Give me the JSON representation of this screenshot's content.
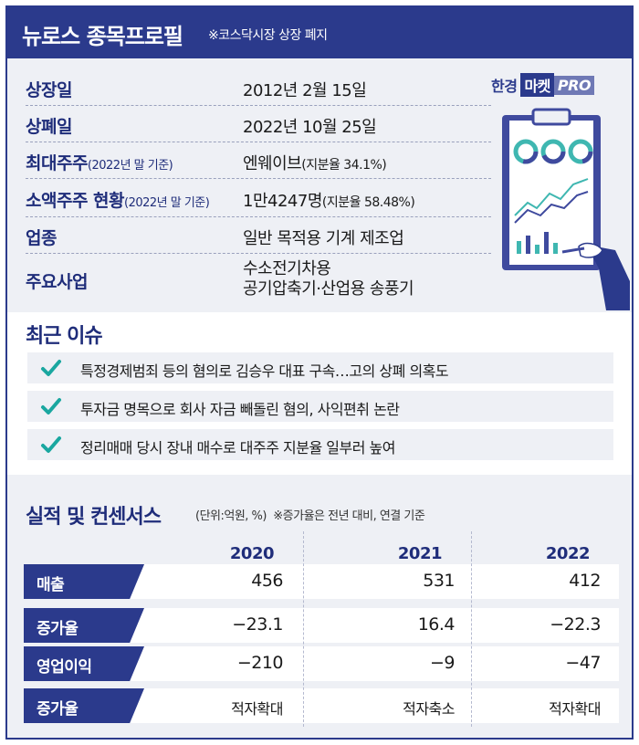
{
  "header": {
    "title": "뉴로스 종목프로필",
    "subtitle": "※코스닥시장 상장 폐지"
  },
  "brand": {
    "part1": "한경",
    "part2": "마켓",
    "part3": "PRO"
  },
  "profile": {
    "listing": {
      "label": "상장일",
      "value": "2012년 2월 15일"
    },
    "delisting": {
      "label": "상폐일",
      "value": "2022년 10월 25일"
    },
    "major": {
      "label": "최대주주",
      "label_note": "(2022년 말 기준)",
      "value": "엔웨이브",
      "value_note": "(지분율 34.1%)"
    },
    "minor": {
      "label": "소액주주 현황",
      "label_note": "(2022년 말 기준)",
      "value": "1만4247명",
      "value_note": "(지분율 58.48%)"
    },
    "industry": {
      "label": "업종",
      "value": "일반 목적용 기계 제조업"
    },
    "business": {
      "label": "주요사업",
      "line1": "수소전기차용",
      "line2": "공기압축기·산업용 송풍기"
    }
  },
  "issues": {
    "title": "최근 이슈",
    "items": [
      "특정경제범죄 등의 혐의로 김승우 대표 구속…고의 상폐 의혹도",
      "투자금 명목으로 회사 자금 빼돌린 혐의, 사익편취 논란",
      "정리매매 당시 장내 매수로 대주주 지분율 일부러 높여"
    ]
  },
  "performance": {
    "title": "실적 및 컨센서스",
    "unit": "(단위:억원, %)",
    "note": "※증가율은 전년 대비, 연결 기준",
    "years": [
      "2020",
      "2021",
      "2022"
    ],
    "rows": [
      {
        "label": "매출",
        "values": [
          "456",
          "531",
          "412"
        ]
      },
      {
        "label": "증가율",
        "values": [
          "−23.1",
          "16.4",
          "−22.3"
        ]
      },
      {
        "label": "영업이익",
        "values": [
          "−210",
          "−9",
          "−47"
        ]
      },
      {
        "label": "증가율",
        "values": [
          "적자확대",
          "적자축소",
          "적자확대"
        ]
      }
    ]
  },
  "colors": {
    "navy": "#2b3a8c",
    "background": "#eef0f5",
    "check": "#1aa7a0"
  },
  "icons": {
    "check": "check-icon",
    "clipboard": "clipboard-chart-icon"
  }
}
